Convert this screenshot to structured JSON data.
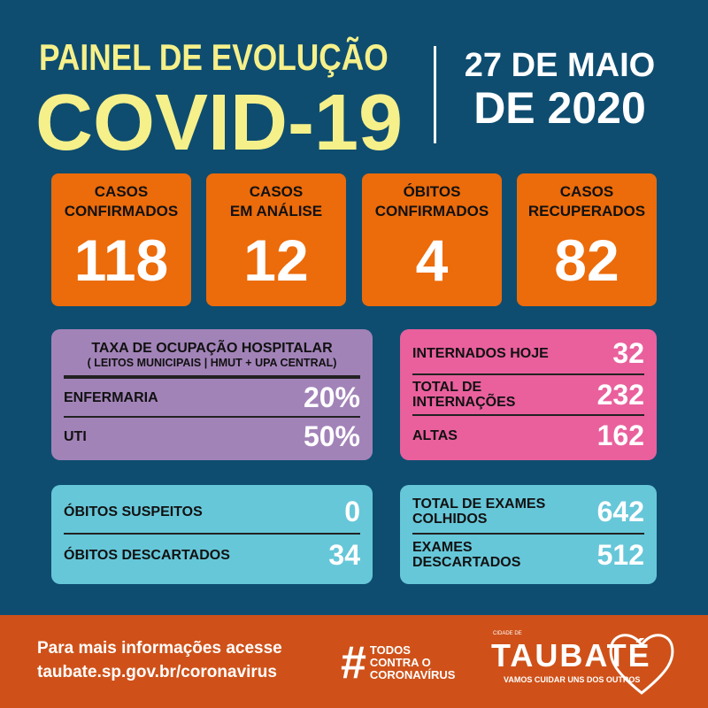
{
  "header": {
    "subtitle": "PAINEL DE EVOLUÇÃO",
    "title": "COVID-19",
    "date_line1": "27 DE MAIO",
    "date_line2": "DE 2020"
  },
  "cards": [
    {
      "label1": "CASOS",
      "label2": "CONFIRMADOS",
      "value": "118"
    },
    {
      "label1": "CASOS",
      "label2": "EM ANÁLISE",
      "value": "12"
    },
    {
      "label1": "ÓBITOS",
      "label2": "CONFIRMADOS",
      "value": "4"
    },
    {
      "label1": "CASOS",
      "label2": "RECUPERADOS",
      "value": "82"
    }
  ],
  "occupancy": {
    "title": "TAXA DE OCUPAÇÃO HOSPITALAR",
    "subtitle": "( LEITOS MUNICIPAIS | HMUT + UPA CENTRAL)",
    "rows": [
      {
        "label": "ENFERMARIA",
        "value": "20%"
      },
      {
        "label": "UTI",
        "value": "50%"
      }
    ]
  },
  "hospital": [
    {
      "label": "INTERNADOS HOJE",
      "value": "32"
    },
    {
      "label": "TOTAL DE INTERNAÇÕES",
      "value": "232"
    },
    {
      "label": "ALTAS",
      "value": "162"
    }
  ],
  "deaths": [
    {
      "label": "ÓBITOS SUSPEITOS",
      "value": "0"
    },
    {
      "label": "ÓBITOS DESCARTADOS",
      "value": "34"
    }
  ],
  "exams": [
    {
      "label": "TOTAL DE EXAMES COLHIDOS",
      "value": "642"
    },
    {
      "label": "EXAMES DESCARTADOS",
      "value": "512"
    }
  ],
  "footer": {
    "info_line1": "Para mais informações acesse",
    "info_line2": "taubate.sp.gov.br/coronavirus",
    "hashtag": "#",
    "hashtag_l1": "TODOS",
    "hashtag_l2": "CONTRA O",
    "hashtag_l3": "CORONAVÍRUS",
    "logo_small": "CIDADE DE",
    "logo_name": "TAUBATÉ",
    "logo_slogan": "VAMOS CUIDAR UNS DOS OUTROS"
  }
}
